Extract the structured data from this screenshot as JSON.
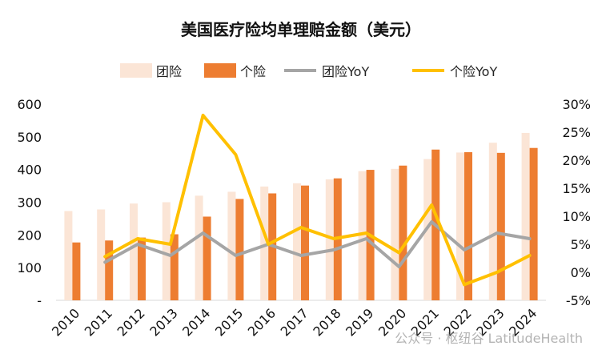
{
  "chart_data": {
    "type": "bar",
    "title": "美国医疗险均单理赔金额（美元）",
    "categories": [
      "2010",
      "2011",
      "2012",
      "2013",
      "2014",
      "2015",
      "2016",
      "2017",
      "2018",
      "2019",
      "2020",
      "2021",
      "2022",
      "2023",
      "2024"
    ],
    "series": [
      {
        "name": "团险",
        "kind": "bar",
        "axis": "left",
        "color": "#FBE5D6",
        "values": [
          273,
          278,
          296,
          300,
          320,
          332,
          348,
          358,
          370,
          395,
          402,
          432,
          452,
          482,
          512
        ]
      },
      {
        "name": "个险",
        "kind": "bar",
        "axis": "left",
        "color": "#ED7D31",
        "values": [
          177,
          183,
          192,
          202,
          256,
          310,
          327,
          351,
          373,
          399,
          412,
          461,
          453,
          451,
          466
        ]
      },
      {
        "name": "团险YoY",
        "kind": "line",
        "axis": "right",
        "color": "#A5A5A5",
        "values": [
          null,
          0.018,
          0.05,
          0.03,
          0.07,
          0.03,
          0.05,
          0.03,
          0.04,
          0.06,
          0.01,
          0.09,
          0.04,
          0.07,
          0.06
        ]
      },
      {
        "name": "个险YoY",
        "kind": "line",
        "axis": "right",
        "color": "#FFC000",
        "values": [
          null,
          0.028,
          0.06,
          0.05,
          0.28,
          0.21,
          0.05,
          0.08,
          0.06,
          0.07,
          0.035,
          0.12,
          -0.022,
          0.0,
          0.03
        ]
      }
    ],
    "y_left": {
      "min": 0,
      "max": 600,
      "ticks": [
        0,
        100,
        200,
        300,
        400,
        500,
        600
      ],
      "tick_labels": [
        "-",
        "100",
        "200",
        "300",
        "400",
        "500",
        "600"
      ]
    },
    "y_right": {
      "min": -0.05,
      "max": 0.3,
      "ticks": [
        -0.05,
        0,
        0.05,
        0.1,
        0.15,
        0.2,
        0.25,
        0.3
      ],
      "tick_labels": [
        "-5%",
        "0%",
        "5%",
        "10%",
        "15%",
        "20%",
        "25%",
        "30%"
      ]
    },
    "grid": false,
    "legend": "top",
    "watermark": "公众号 · 枢纽谷 LatitudeHealth"
  }
}
